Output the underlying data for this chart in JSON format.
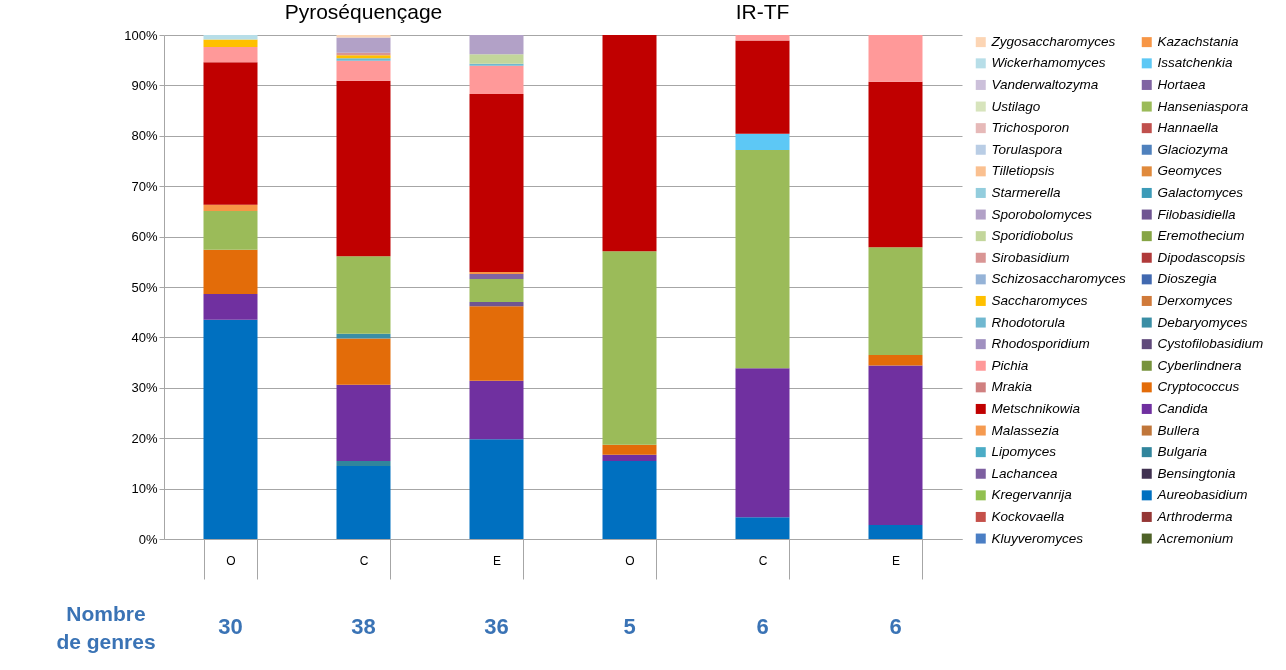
{
  "chart_data": {
    "type": "bar",
    "stacked": true,
    "categories": [
      "O",
      "C",
      "E",
      "O",
      "C",
      "E"
    ],
    "ylim": [
      0,
      100
    ],
    "yticks": [
      {
        "value": 0,
        "label": "0%"
      },
      {
        "value": 10,
        "label": "10%"
      },
      {
        "value": 20,
        "label": "20%"
      },
      {
        "value": 30,
        "label": "30%"
      },
      {
        "value": 40,
        "label": "40%"
      },
      {
        "value": 50,
        "label": "50%"
      },
      {
        "value": 60,
        "label": "60%"
      },
      {
        "value": 70,
        "label": "70%"
      },
      {
        "value": 80,
        "label": "80%"
      },
      {
        "value": 90,
        "label": "90%"
      },
      {
        "value": 100,
        "label": "100%"
      }
    ],
    "grid": "y",
    "legend": "right",
    "annotations": [
      "Pyroséquençage",
      "IR-TF",
      "Nombre de genres",
      "30",
      "38",
      "36",
      "5",
      "6",
      "6"
    ],
    "series": [
      {
        "name": "Acremonium",
        "color": "#4f6228",
        "values": [
          0,
          0,
          0,
          0,
          0,
          0
        ]
      },
      {
        "name": "Arthroderma",
        "color": "#953735",
        "values": [
          0,
          0,
          0,
          0,
          0,
          0
        ]
      },
      {
        "name": "Aureobasidium",
        "color": "#0070c0",
        "values": [
          43.5,
          14.5,
          19.8,
          15.5,
          4.3,
          2.8
        ]
      },
      {
        "name": "Bensingtonia",
        "color": "#403151",
        "values": [
          0,
          0,
          0,
          0,
          0,
          0
        ]
      },
      {
        "name": "Bulgaria",
        "color": "#31859c",
        "values": [
          0,
          1.0,
          0,
          0,
          0,
          0
        ]
      },
      {
        "name": "Bullera",
        "color": "#c0763a",
        "values": [
          0,
          0,
          0,
          0,
          0,
          0
        ]
      },
      {
        "name": "Candida",
        "color": "#7030a0",
        "values": [
          5.1,
          15.1,
          11.6,
          1.2,
          29.6,
          31.6
        ]
      },
      {
        "name": "Cryptococcus",
        "color": "#e36c09",
        "values": [
          8.8,
          9.2,
          14.8,
          2.0,
          0,
          2.1
        ]
      },
      {
        "name": "Cyberlindnera",
        "color": "#77933c",
        "values": [
          0,
          0,
          0,
          0,
          0,
          0
        ]
      },
      {
        "name": "Cystofilobasidium",
        "color": "#604a7b",
        "values": [
          0,
          0,
          0,
          0,
          0,
          0
        ]
      },
      {
        "name": "Debaryomyces",
        "color": "#3a8ea5",
        "values": [
          0,
          0.9,
          0,
          0,
          0,
          0
        ]
      },
      {
        "name": "Derxomyces",
        "color": "#d07a3a",
        "values": [
          0,
          0,
          0,
          0,
          0,
          0
        ]
      },
      {
        "name": "Dioszegia",
        "color": "#4169b0",
        "values": [
          0,
          0,
          0,
          0,
          0,
          0
        ]
      },
      {
        "name": "Dipodascopsis",
        "color": "#b03a3a",
        "values": [
          0,
          0,
          0,
          0,
          0,
          0
        ]
      },
      {
        "name": "Eremothecium",
        "color": "#86a545",
        "values": [
          0,
          0,
          0,
          0,
          0,
          0
        ]
      },
      {
        "name": "Filobasidiella",
        "color": "#6f5592",
        "values": [
          0,
          0,
          0.8,
          0,
          0,
          0
        ]
      },
      {
        "name": "Galactomyces",
        "color": "#3c9bb8",
        "values": [
          0,
          0,
          0,
          0,
          0,
          0
        ]
      },
      {
        "name": "Geomyces",
        "color": "#e08a3c",
        "values": [
          0,
          0,
          0,
          0,
          0,
          0
        ]
      },
      {
        "name": "Glaciozyma",
        "color": "#4f81bd",
        "values": [
          0,
          0,
          0,
          0,
          0,
          0
        ]
      },
      {
        "name": "Hannaella",
        "color": "#c0504d",
        "values": [
          0,
          0,
          0,
          0,
          0,
          0
        ]
      },
      {
        "name": "Hanseniaspora",
        "color": "#9bbb59",
        "values": [
          7.7,
          15.4,
          4.6,
          38.4,
          43.3,
          21.4
        ]
      },
      {
        "name": "Hortaea",
        "color": "#8064a2",
        "values": [
          0,
          0,
          1.0,
          0,
          0,
          0
        ]
      },
      {
        "name": "Issatchenkia",
        "color": "#5dc8f5",
        "values": [
          0,
          0,
          0,
          0,
          3.2,
          0
        ]
      },
      {
        "name": "Kazachstania",
        "color": "#f79646",
        "values": [
          1.2,
          0,
          0.4,
          0,
          0,
          0
        ]
      },
      {
        "name": "Kluyveromyces",
        "color": "#4a7ec4",
        "values": [
          0,
          0,
          0,
          0,
          0,
          0
        ]
      },
      {
        "name": "Kockovaella",
        "color": "#c5504a",
        "values": [
          0,
          0,
          0,
          0,
          0,
          0
        ]
      },
      {
        "name": "Kregervanrija",
        "color": "#92c050",
        "values": [
          0,
          0,
          0,
          0,
          0,
          0
        ]
      },
      {
        "name": "Lachancea",
        "color": "#7d5fa0",
        "values": [
          0,
          0,
          0,
          0,
          0,
          0
        ]
      },
      {
        "name": "Lipomyces",
        "color": "#4bacc6",
        "values": [
          0,
          0,
          0,
          0,
          0,
          0
        ]
      },
      {
        "name": "Malassezia",
        "color": "#f59a50",
        "values": [
          0,
          0,
          0,
          0,
          0,
          0
        ]
      },
      {
        "name": "Metschnikowia",
        "color": "#c00000",
        "values": [
          28.3,
          34.8,
          35.3,
          42.9,
          18.5,
          32.8
        ]
      },
      {
        "name": "Mrakia",
        "color": "#d08080",
        "values": [
          0,
          0,
          0,
          0,
          0,
          0
        ]
      },
      {
        "name": "Pichia",
        "color": "#ff9999",
        "values": [
          3.0,
          4.0,
          5.6,
          0,
          1.1,
          9.3
        ]
      },
      {
        "name": "Rhodosporidium",
        "color": "#a090c0",
        "values": [
          0,
          0,
          0,
          0,
          0,
          0
        ]
      },
      {
        "name": "Rhodotorula",
        "color": "#70b8d0",
        "values": [
          0,
          0.5,
          0.4,
          0,
          0,
          0
        ]
      },
      {
        "name": "Saccharomyces",
        "color": "#ffc000",
        "values": [
          1.5,
          0.6,
          0,
          0,
          0,
          0
        ]
      },
      {
        "name": "Schizosaccharomyces",
        "color": "#95b3d7",
        "values": [
          0,
          0,
          0,
          0,
          0,
          0
        ]
      },
      {
        "name": "Sirobasidium",
        "color": "#d99594",
        "values": [
          0,
          0.5,
          0,
          0,
          0,
          0
        ]
      },
      {
        "name": "Sporidiobolus",
        "color": "#c3d69b",
        "values": [
          0,
          0,
          1.9,
          0,
          0,
          0
        ]
      },
      {
        "name": "Sporobolomyces",
        "color": "#b2a1c7",
        "values": [
          0,
          3.0,
          3.8,
          0,
          0,
          0
        ]
      },
      {
        "name": "Starmerella",
        "color": "#93cddd",
        "values": [
          0,
          0,
          0,
          0,
          0,
          0
        ]
      },
      {
        "name": "Tilletiopsis",
        "color": "#fac090",
        "values": [
          0,
          0,
          0,
          0,
          0,
          0
        ]
      },
      {
        "name": "Torulaspora",
        "color": "#b9cde5",
        "values": [
          0,
          0,
          0,
          0,
          0,
          0
        ]
      },
      {
        "name": "Trichosporon",
        "color": "#e6b9b8",
        "values": [
          0,
          0,
          0,
          0,
          0,
          0
        ]
      },
      {
        "name": "Ustilago",
        "color": "#d7e4bc",
        "values": [
          0,
          0,
          0,
          0,
          0,
          0
        ]
      },
      {
        "name": "Vanderwaltozyma",
        "color": "#ccc0da",
        "values": [
          0,
          0,
          0,
          0,
          0,
          0
        ]
      },
      {
        "name": "Wickerhamomyces",
        "color": "#b7dee8",
        "values": [
          0.9,
          0,
          0,
          0,
          0,
          0
        ]
      },
      {
        "name": "Zygosaccharomyces",
        "color": "#fcd5b4",
        "values": [
          0,
          0.5,
          0,
          0,
          0,
          0
        ]
      }
    ]
  }
}
